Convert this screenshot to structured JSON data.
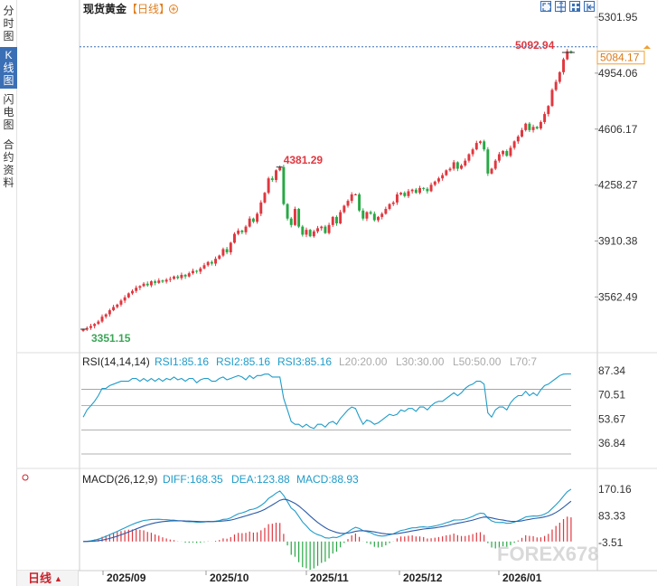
{
  "sidebar": {
    "tabs": [
      {
        "label": "分时图",
        "active": false
      },
      {
        "label": "K线图",
        "active": true
      },
      {
        "label": "闪电图",
        "active": false
      },
      {
        "label": "合约资料",
        "active": false
      }
    ]
  },
  "header": {
    "title": "现货黄金",
    "period": "【日线】",
    "add_icon": "plus-circle-icon",
    "tool_icons": [
      "expand-icon",
      "crosshair-icon",
      "grid-layout-icon",
      "zoom-out-icon"
    ]
  },
  "footer": {
    "period_tab": "日线",
    "period_arrow": "▲",
    "dates": [
      "2025/09",
      "2025/10",
      "2025/11",
      "2025/12",
      "2026/01"
    ]
  },
  "watermark": "FOREX678",
  "colors": {
    "up": "#e0373f",
    "down": "#28a745",
    "accent": "#3a6fb5",
    "price_tag": "#f0a030"
  },
  "chart_data": [
    {
      "type": "candlestick",
      "title": "现货黄金【日线】",
      "y_ticks": [
        "5301.95",
        "4954.06",
        "4606.17",
        "4258.27",
        "3910.38",
        "3562.49"
      ],
      "ylim": [
        3351.15,
        5301.95
      ],
      "annotations": {
        "high_label": "4381.29",
        "low_label": "3351.15",
        "latest_high_label": "5092.94",
        "last_price": "5084.17"
      },
      "close": [
        3360,
        3370,
        3382,
        3395,
        3410,
        3440,
        3455,
        3480,
        3500,
        3515,
        3540,
        3560,
        3585,
        3600,
        3620,
        3630,
        3645,
        3635,
        3660,
        3650,
        3665,
        3658,
        3670,
        3675,
        3690,
        3680,
        3700,
        3690,
        3710,
        3725,
        3720,
        3740,
        3760,
        3780,
        3770,
        3800,
        3820,
        3860,
        3840,
        3900,
        3955,
        3975,
        3965,
        4000,
        4050,
        4030,
        4080,
        4150,
        4210,
        4300,
        4290,
        4350,
        4370,
        4140,
        4050,
        4010,
        4110,
        4000,
        3950,
        3980,
        3940,
        3970,
        3990,
        4000,
        3960,
        4010,
        4060,
        4020,
        4090,
        4130,
        4160,
        4200,
        4200,
        4100,
        4050,
        4090,
        4080,
        4040,
        4060,
        4080,
        4110,
        4140,
        4150,
        4200,
        4210,
        4190,
        4220,
        4230,
        4210,
        4240,
        4235,
        4220,
        4260,
        4280,
        4300,
        4320,
        4350,
        4360,
        4400,
        4360,
        4380,
        4410,
        4450,
        4480,
        4520,
        4530,
        4480,
        4330,
        4360,
        4410,
        4450,
        4470,
        4440,
        4490,
        4530,
        4560,
        4600,
        4640,
        4600,
        4620,
        4610,
        4650,
        4700,
        4750,
        4850,
        4900,
        4960,
        5040,
        5090,
        5084.17
      ],
      "rsi": {
        "label": "RSI(14,14,14)",
        "readouts": [
          "RSI1:85.16",
          "RSI2:85.16",
          "RSI3:85.16",
          "L20:20.00",
          "L30:30.00",
          "L50:50.00",
          "L70:7"
        ],
        "y_ticks": [
          "87.34",
          "70.51",
          "53.67",
          "36.84"
        ],
        "ylim": [
          36.84,
          87.34
        ],
        "values": [
          55,
          60,
          63,
          66,
          70,
          75,
          75,
          77,
          78,
          79,
          80,
          80,
          80,
          82,
          82,
          80,
          82,
          80,
          82,
          80,
          82,
          80,
          82,
          81,
          83,
          81,
          82,
          80,
          82,
          82,
          79,
          81,
          82,
          82,
          80,
          80,
          82,
          83,
          81,
          82,
          83,
          84,
          83,
          81,
          84,
          82,
          84,
          84,
          85,
          85,
          83,
          83,
          83,
          68,
          60,
          52,
          50,
          50,
          48,
          50,
          48,
          47,
          50,
          50,
          48,
          51,
          52,
          50,
          54,
          57,
          60,
          62,
          61,
          55,
          50,
          53,
          52,
          50,
          51,
          53,
          55,
          57,
          56,
          57,
          60,
          59,
          61,
          61,
          59,
          62,
          62,
          60,
          63,
          65,
          66,
          66,
          68,
          70,
          72,
          70,
          72,
          75,
          77,
          78,
          80,
          80,
          78,
          58,
          55,
          60,
          62,
          62,
          60,
          65,
          68,
          70,
          70,
          73,
          70,
          72,
          70,
          74,
          77,
          78,
          80,
          82,
          84,
          85,
          85.16,
          85.16
        ]
      },
      "macd": {
        "label": "MACD(26,12,9)",
        "readouts": [
          "DIFF:168.35",
          "DEA:123.88",
          "MACD:88.93"
        ],
        "y_ticks": [
          "170.16",
          "83.33",
          "-3.51"
        ],
        "ylim": [
          -3.51,
          170.16
        ]
      }
    }
  ]
}
